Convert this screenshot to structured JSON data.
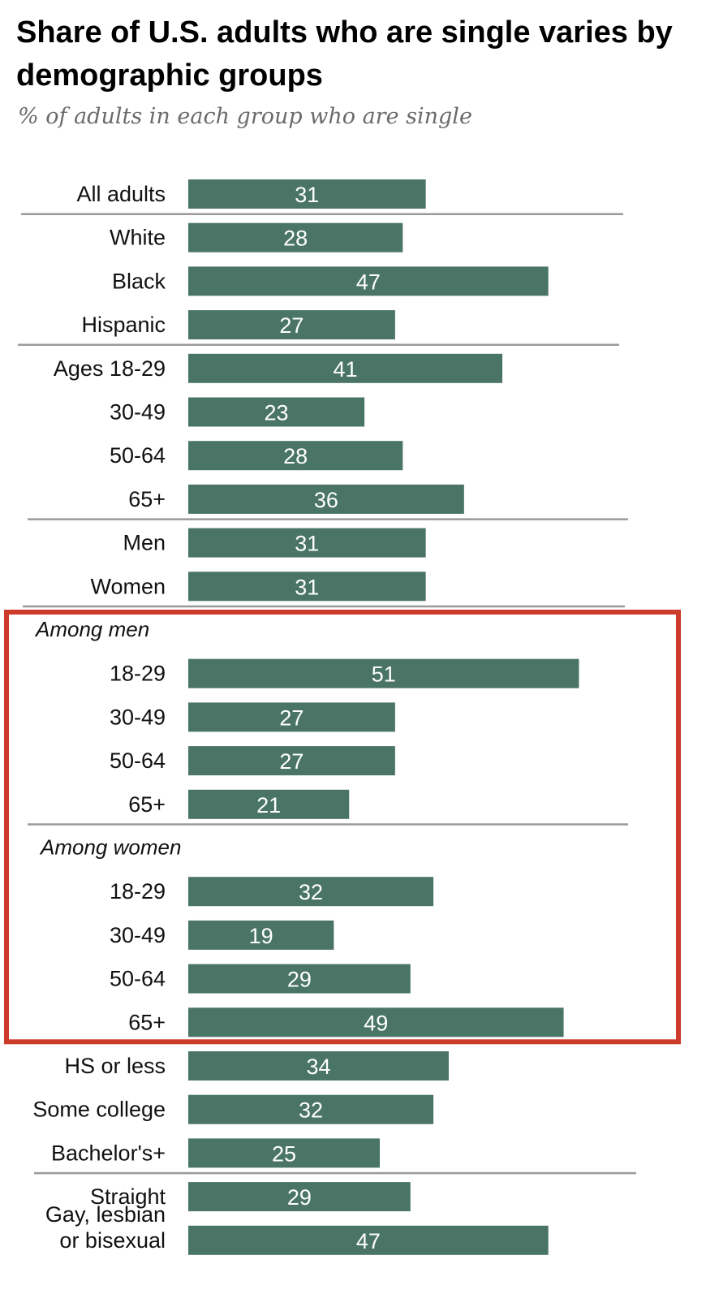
{
  "title": "Share of U.S. adults who are single varies by demographic groups",
  "subtitle": "% of adults in each group who are single",
  "colors": {
    "bar": "#4a7566",
    "divider": "#9a9a9a",
    "highlight_box": "#cc3a2a"
  },
  "chart_data": {
    "type": "bar",
    "orientation": "horizontal",
    "title": "Share of U.S. adults who are single varies by demographic groups",
    "subtitle": "% of adults in each group who are single",
    "xlim": [
      0,
      55
    ],
    "grid": false,
    "data_labels": true,
    "groups": [
      {
        "heading": "",
        "items": [
          {
            "label": "All adults",
            "value": 31
          }
        ]
      },
      {
        "heading": "",
        "items": [
          {
            "label": "White",
            "value": 28
          },
          {
            "label": "Black",
            "value": 47
          },
          {
            "label": "Hispanic",
            "value": 27
          }
        ]
      },
      {
        "heading": "",
        "items": [
          {
            "label": "Ages 18-29",
            "value": 41
          },
          {
            "label": "30-49",
            "value": 23
          },
          {
            "label": "50-64",
            "value": 28
          },
          {
            "label": "65+",
            "value": 36
          }
        ]
      },
      {
        "heading": "",
        "items": [
          {
            "label": "Men",
            "value": 31
          },
          {
            "label": "Women",
            "value": 31
          }
        ]
      },
      {
        "heading": "Among men",
        "highlighted": true,
        "items": [
          {
            "label": "18-29",
            "value": 51
          },
          {
            "label": "30-49",
            "value": 27
          },
          {
            "label": "50-64",
            "value": 27
          },
          {
            "label": "65+",
            "value": 21
          }
        ]
      },
      {
        "heading": "Among women",
        "highlighted": true,
        "items": [
          {
            "label": "18-29",
            "value": 32
          },
          {
            "label": "30-49",
            "value": 19
          },
          {
            "label": "50-64",
            "value": 29
          },
          {
            "label": "65+",
            "value": 49
          }
        ]
      },
      {
        "heading": "",
        "items": [
          {
            "label": "HS or less",
            "value": 34
          },
          {
            "label": "Some college",
            "value": 32
          },
          {
            "label": "Bachelor's+",
            "value": 25
          }
        ]
      },
      {
        "heading": "",
        "items": [
          {
            "label": "Straight",
            "value": 29
          },
          {
            "label": "Gay, lesbian\nor bisexual",
            "value": 47
          }
        ]
      }
    ]
  }
}
